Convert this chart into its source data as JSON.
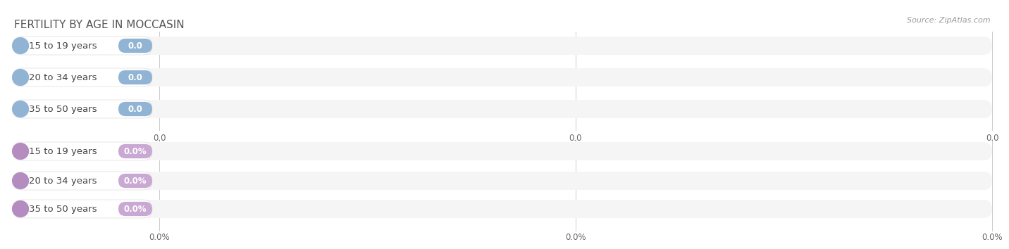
{
  "title": "FERTILITY BY AGE IN MOCCASIN",
  "source": "Source: ZipAtlas.com",
  "top_categories": [
    "15 to 19 years",
    "20 to 34 years",
    "35 to 50 years"
  ],
  "top_values": [
    "0.0",
    "0.0",
    "0.0"
  ],
  "top_bar_bg": "#e8eef5",
  "top_circle_color": "#92b4d4",
  "top_badge_color": "#92b4d4",
  "top_badge_text_color": "#ffffff",
  "bottom_categories": [
    "15 to 19 years",
    "20 to 34 years",
    "35 to 50 years"
  ],
  "bottom_values": [
    "0.0%",
    "0.0%",
    "0.0%"
  ],
  "bottom_bar_bg": "#e8dded",
  "bottom_circle_color": "#b48cc0",
  "bottom_badge_color": "#c9a8d4",
  "bottom_badge_text_color": "#ffffff",
  "label_color": "#444444",
  "tick_color": "#666666",
  "grid_color": "#cccccc",
  "bg_color": "#ffffff",
  "row_bg_color": "#f5f5f5",
  "top_x_ticks": [
    "0.0",
    "0.0",
    "0.0"
  ],
  "bottom_x_ticks": [
    "0.0%",
    "0.0%",
    "0.0%"
  ],
  "title_fontsize": 11,
  "label_fontsize": 9.5,
  "badge_fontsize": 8.5,
  "tick_fontsize": 8.5,
  "source_fontsize": 8
}
